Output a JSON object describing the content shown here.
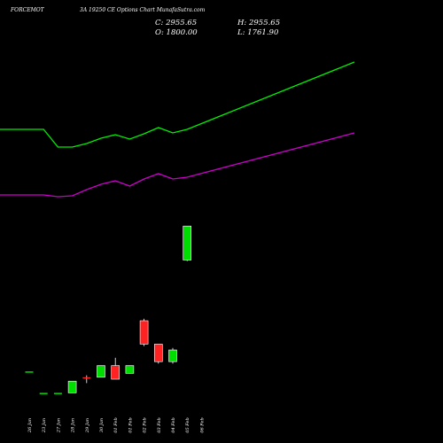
{
  "header": {
    "symbol": "FORCEMOT",
    "title": "3A 19250 CE Options Chart MunafaSutra.com",
    "close_label": "C: 2955.65",
    "high_label": "H: 2955.65",
    "open_label": "O: 1800.00",
    "low_label": "L: 1761.90"
  },
  "chart_data": {
    "type": "candlestick",
    "title": "3A 19250 CE Options Chart MunafaSutra.com",
    "categories": [
      "26 Jan",
      "23 Jan",
      "27 Jan",
      "28 Jan",
      "29 Jan",
      "30 Jan",
      "01 Feb",
      "01 Feb",
      "02 Feb",
      "03 Feb",
      "04 Feb",
      "05 Feb",
      "06 Feb"
    ],
    "candles": [
      {
        "date": "26 Jan",
        "open": 220,
        "high": 220,
        "low": 220,
        "close": 220,
        "color": "#00dd00"
      },
      {
        "date": "23 Jan",
        "open": 165,
        "high": 165,
        "low": 165,
        "close": 165,
        "color": "#00dd00"
      },
      {
        "date": "27 Jan",
        "open": 165,
        "high": 165,
        "low": 165,
        "close": 165,
        "color": "#00dd00"
      },
      {
        "date": "28 Jan",
        "open": 165,
        "high": 195,
        "low": 165,
        "close": 195,
        "color": "#00dd00"
      },
      {
        "date": "29 Jan",
        "open": 205,
        "high": 210,
        "low": 190,
        "close": 205,
        "color": "#ff2222"
      },
      {
        "date": "30 Jan",
        "open": 205,
        "high": 235,
        "low": 205,
        "close": 235,
        "color": "#00dd00"
      },
      {
        "date": "01 Feb",
        "open": 235,
        "high": 255,
        "low": 200,
        "close": 200,
        "color": "#ff2222"
      },
      {
        "date": "01 Feb",
        "open": 215,
        "high": 235,
        "low": 215,
        "close": 235,
        "color": "#00dd00"
      },
      {
        "date": "02 Feb",
        "open": 350,
        "high": 355,
        "low": 285,
        "close": 290,
        "color": "#ff2222"
      },
      {
        "date": "03 Feb",
        "open": 290,
        "high": 290,
        "low": 240,
        "close": 245,
        "color": "#ff2222"
      },
      {
        "date": "04 Feb",
        "open": 245,
        "high": 280,
        "low": 240,
        "close": 275,
        "color": "#00dd00"
      },
      {
        "date": "05 Feb",
        "open": 1800.0,
        "high": 2955.65,
        "low": 1761.9,
        "close": 2955.65,
        "color": "#00dd00"
      },
      {
        "date": "06 Feb",
        "open": null,
        "high": null,
        "low": null,
        "close": null,
        "color": "#00dd00"
      }
    ],
    "series": [
      {
        "name": "",
        "color": "#00ee00",
        "values": [
          1720,
          1720,
          1620,
          1620,
          1640,
          1670,
          1690,
          1665,
          1695,
          1730,
          1700,
          1720,
          2100
        ]
      },
      {
        "name": "",
        "color": "#cc00cc",
        "values": [
          1350,
          1350,
          1340,
          1345,
          1380,
          1410,
          1430,
          1400,
          1440,
          1470,
          1440,
          1450,
          1700
        ]
      }
    ],
    "xlabel": "",
    "ylabel": "",
    "grid": false,
    "legend": "none"
  }
}
